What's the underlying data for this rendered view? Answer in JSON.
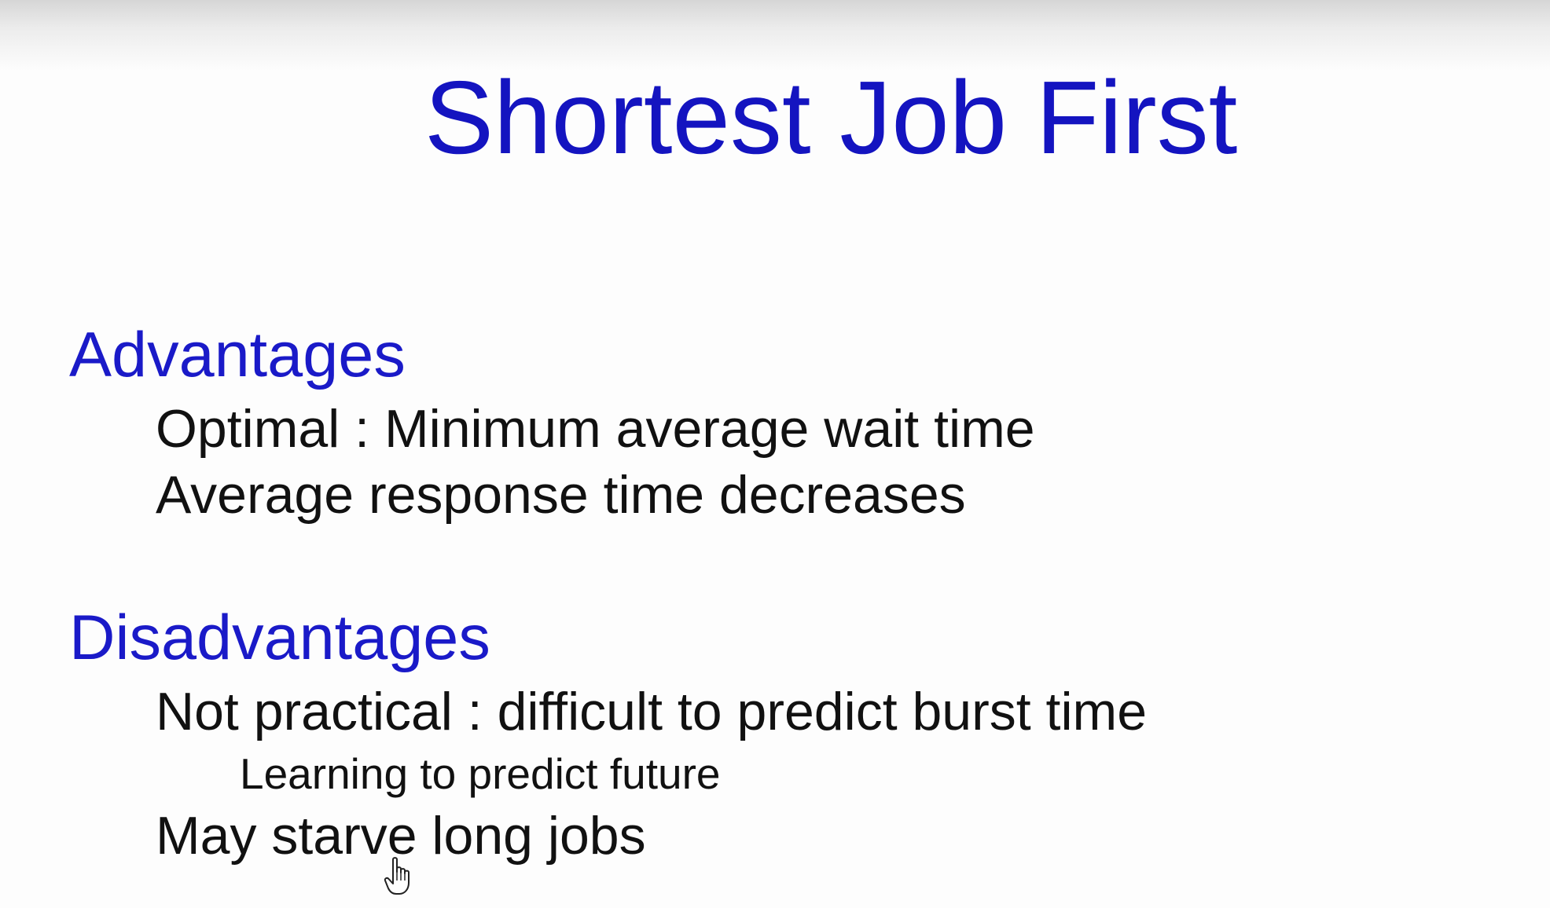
{
  "slide": {
    "title": "Shortest Job First",
    "advantages": {
      "heading": "Advantages",
      "items": [
        "Optimal : Minimum average wait time",
        "Average response time decreases"
      ]
    },
    "disadvantages": {
      "heading": "Disadvantages",
      "items": [
        "Not practical : difficult to predict burst time",
        "Learning to predict future",
        "May starve long jobs"
      ]
    }
  },
  "colors": {
    "heading_blue": "#1a1ac8",
    "title_blue": "#1414c0",
    "text": "#111111"
  },
  "cursor_icon": "hand-pointer-icon"
}
